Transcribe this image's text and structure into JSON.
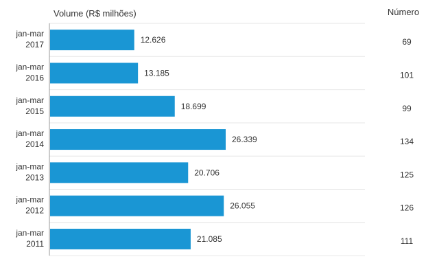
{
  "chart_data": {
    "type": "bar",
    "orientation": "horizontal",
    "xlabel": "Volume (R$ milhões)",
    "secondary_column_header": "Número",
    "categories": [
      [
        "jan-mar",
        "2017"
      ],
      [
        "jan-mar",
        "2016"
      ],
      [
        "jan-mar",
        "2015"
      ],
      [
        "jan-mar",
        "2014"
      ],
      [
        "jan-mar",
        "2013"
      ],
      [
        "jan-mar",
        "2012"
      ],
      [
        "jan-mar",
        "2011"
      ]
    ],
    "values": [
      12626,
      13185,
      18699,
      26339,
      20706,
      26055,
      21085
    ],
    "value_labels": [
      "12.626",
      "13.185",
      "18.699",
      "26.339",
      "20.706",
      "26.055",
      "21.085"
    ],
    "numero": [
      "69",
      "101",
      "99",
      "134",
      "125",
      "126",
      "111"
    ],
    "xlim": [
      0,
      40000
    ],
    "grid": true,
    "bar_color": "#1a96d4"
  }
}
